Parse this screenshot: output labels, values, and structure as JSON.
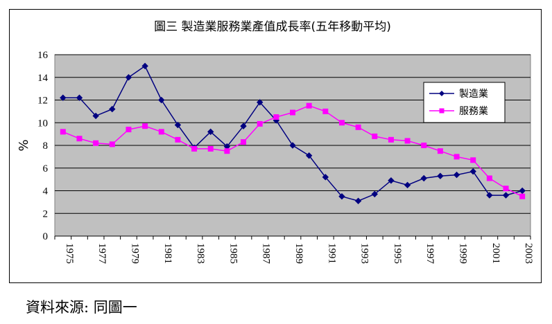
{
  "chart_data": {
    "type": "line",
    "title": "圖三 製造業服務業產值成長率(五年移動平均)",
    "xlabel": "",
    "ylabel": "%",
    "ylim": [
      0,
      16
    ],
    "yticks": [
      0,
      2,
      4,
      6,
      8,
      10,
      12,
      14,
      16
    ],
    "x": [
      1975,
      1976,
      1977,
      1978,
      1979,
      1980,
      1981,
      1982,
      1983,
      1984,
      1985,
      1986,
      1987,
      1988,
      1989,
      1990,
      1991,
      1992,
      1993,
      1994,
      1995,
      1996,
      1997,
      1998,
      1999,
      2000,
      2001,
      2002,
      2003
    ],
    "xtick_labels": [
      "1975",
      "1977",
      "1979",
      "1981",
      "1983",
      "1985",
      "1987",
      "1989",
      "1991",
      "1993",
      "1995",
      "1997",
      "1999",
      "2001",
      "2003"
    ],
    "grid": "horizontal",
    "legend_position": "right",
    "series": [
      {
        "name": "製造業",
        "color": "#000080",
        "marker": "diamond",
        "values": [
          12.2,
          12.2,
          10.6,
          11.2,
          14.0,
          15.0,
          12.0,
          9.8,
          7.8,
          9.2,
          7.9,
          9.7,
          11.8,
          10.2,
          8.0,
          7.1,
          5.2,
          3.5,
          3.1,
          3.7,
          4.9,
          4.5,
          5.1,
          5.3,
          5.4,
          5.7,
          3.6,
          3.6,
          4.0
        ]
      },
      {
        "name": "服務業",
        "color": "#ff00ff",
        "marker": "square",
        "values": [
          9.2,
          8.6,
          8.2,
          8.1,
          9.4,
          9.7,
          9.2,
          8.5,
          7.7,
          7.7,
          7.5,
          8.3,
          9.9,
          10.5,
          10.9,
          11.5,
          11.0,
          10.0,
          9.6,
          8.8,
          8.5,
          8.4,
          8.0,
          7.5,
          7.0,
          6.7,
          5.1,
          4.2,
          3.5
        ]
      }
    ],
    "plot_background": "#c0c0c0"
  },
  "source_note": "資料來源: 同圖一"
}
